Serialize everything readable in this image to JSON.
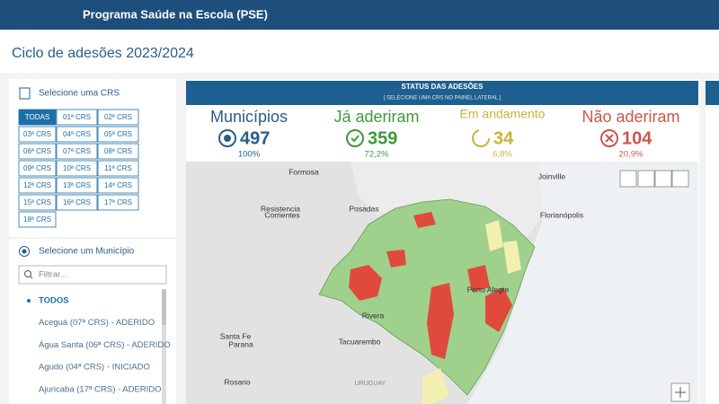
{
  "header": {
    "title": "Programa Saúde na Escola (PSE)"
  },
  "page": {
    "title": "Ciclo de adesões 2023/2024"
  },
  "sidebar": {
    "crs_title": "Selecione uma CRS",
    "crs_buttons": [
      "TODAS",
      "01ª CRS",
      "02ª CRS",
      "03ª CRS",
      "04ª CRS",
      "05ª CRS",
      "06ª CRS",
      "07ª CRS",
      "08ª CRS",
      "09ª CRS",
      "10ª CRS",
      "11ª CRS",
      "12ª CRS",
      "13ª CRS",
      "14ª CRS",
      "15ª CRS",
      "16ª CRS",
      "17ª CRS",
      "18ª CRS"
    ],
    "municipio_title": "Selecione um Município",
    "filter_placeholder": "Filtrar...",
    "list": [
      "TODOS",
      "Aceguá (07ª CRS) - ADERIDO",
      "Água Santa (06ª CRS) - ADERIDO",
      "Agudo (04ª CRS) - INICIADO",
      "Ajuricaba (17ª CRS) - ADERIDO"
    ]
  },
  "status": {
    "title": "STATUS DAS ADESÕES",
    "subtitle": "[ SELECIONE UMA CRS NO PAINEL LATERAL ]",
    "cards": [
      {
        "label": "Municípios",
        "value": "497",
        "percent": "100%"
      },
      {
        "label": "Já aderiram",
        "value": "359",
        "percent": "72,2%"
      },
      {
        "label": "Em andamento",
        "value": "34",
        "percent": "6,8%"
      },
      {
        "label": "Não aderiram",
        "value": "104",
        "percent": "20,9%"
      }
    ]
  },
  "map": {
    "labels": [
      "Formosa",
      "Joinville",
      "Resistencia",
      "Corrientes",
      "Posadas",
      "Florianópolis",
      "Porto Alegre",
      "Santa Fe",
      "Parana",
      "Rivera",
      "Tacuarembo",
      "Rosario",
      "URUGUAY"
    ]
  }
}
